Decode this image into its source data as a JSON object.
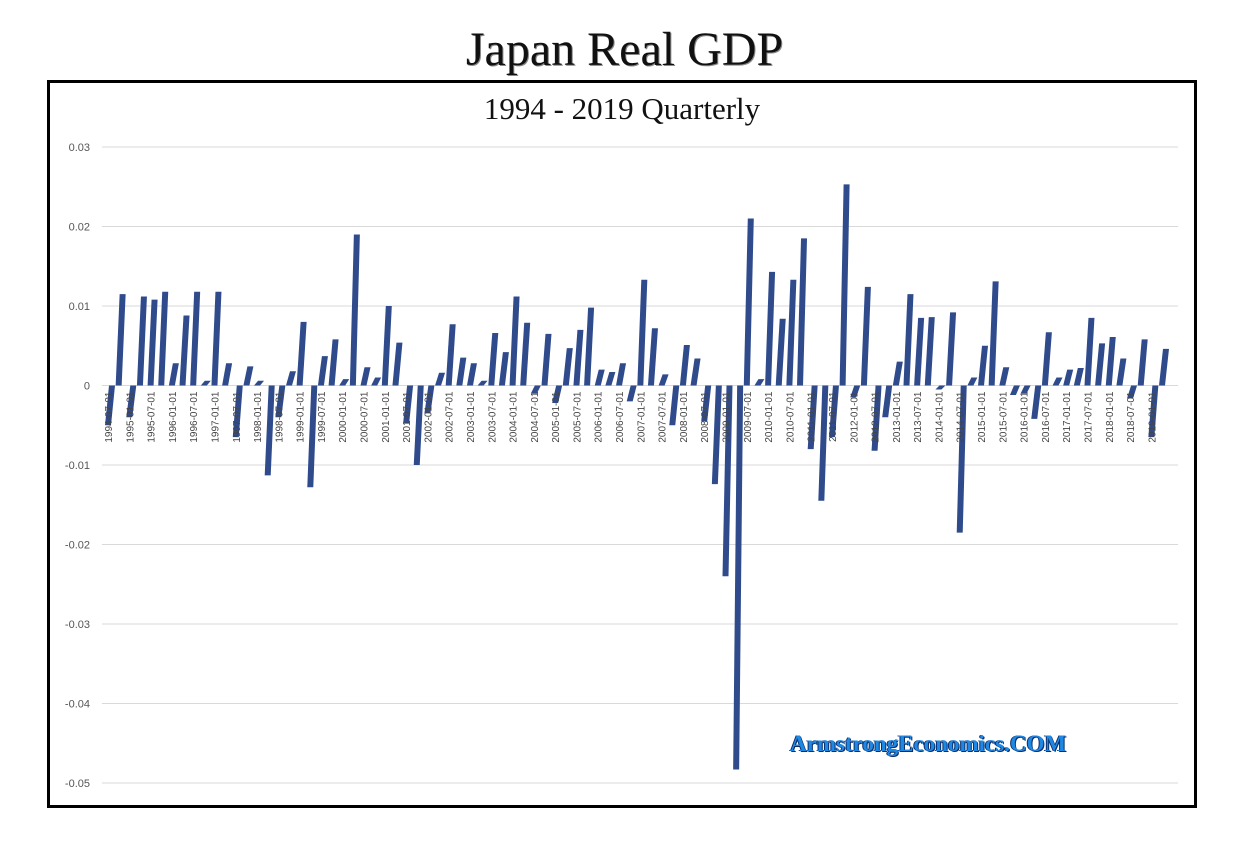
{
  "header": {
    "title": "Japan Real GDP"
  },
  "watermark": "ArmstrongEconomics.COM",
  "chart_data": {
    "type": "bar",
    "title": "1994 - 2019 Quarterly",
    "xlabel": "",
    "ylabel": "",
    "ylim": [
      -0.05,
      0.03
    ],
    "yticks": [
      0.03,
      0.02,
      0.01,
      0,
      -0.01,
      -0.02,
      -0.03,
      -0.04,
      -0.05
    ],
    "grid": true,
    "bar_color": "#2f4b8c",
    "categories": [
      "1994-07-01",
      "1994-10-01",
      "1995-01-01",
      "1995-04-01",
      "1995-07-01",
      "1995-10-01",
      "1996-01-01",
      "1996-04-01",
      "1996-07-01",
      "1996-10-01",
      "1997-01-01",
      "1997-04-01",
      "1997-07-01",
      "1997-10-01",
      "1998-01-01",
      "1998-04-01",
      "1998-07-01",
      "1998-10-01",
      "1999-01-01",
      "1999-04-01",
      "1999-07-01",
      "1999-10-01",
      "2000-01-01",
      "2000-04-01",
      "2000-07-01",
      "2000-10-01",
      "2001-01-01",
      "2001-04-01",
      "2001-07-01",
      "2001-10-01",
      "2002-01-01",
      "2002-04-01",
      "2002-07-01",
      "2002-10-01",
      "2003-01-01",
      "2003-04-01",
      "2003-07-01",
      "2003-10-01",
      "2004-01-01",
      "2004-04-01",
      "2004-07-01",
      "2004-10-01",
      "2005-01-01",
      "2005-04-01",
      "2005-07-01",
      "2005-10-01",
      "2006-01-01",
      "2006-04-01",
      "2006-07-01",
      "2006-10-01",
      "2007-01-01",
      "2007-04-01",
      "2007-07-01",
      "2007-10-01",
      "2008-01-01",
      "2008-04-01",
      "2008-07-01",
      "2008-10-01",
      "2009-01-01",
      "2009-04-01",
      "2009-07-01",
      "2009-10-01",
      "2010-01-01",
      "2010-04-01",
      "2010-07-01",
      "2010-10-01",
      "2011-01-01",
      "2011-04-01",
      "2011-07-01",
      "2011-10-01",
      "2012-01-01",
      "2012-04-01",
      "2012-07-01",
      "2012-10-01",
      "2013-01-01",
      "2013-04-01",
      "2013-07-01",
      "2013-10-01",
      "2014-01-01",
      "2014-04-01",
      "2014-07-01",
      "2014-10-01",
      "2015-01-01",
      "2015-04-01",
      "2015-07-01",
      "2015-10-01",
      "2016-01-01",
      "2016-04-01",
      "2016-07-01",
      "2016-10-01",
      "2017-01-01",
      "2017-04-01",
      "2017-07-01",
      "2017-10-01",
      "2018-01-01",
      "2018-04-01",
      "2018-07-01",
      "2018-10-01",
      "2019-01-01",
      "2019-04-01"
    ],
    "values": [
      -0.005,
      0.0115,
      -0.004,
      0.0112,
      0.0108,
      0.0118,
      0.0028,
      0.0088,
      0.0118,
      0.0006,
      0.0118,
      0.0028,
      -0.0065,
      0.0024,
      0.0006,
      -0.0113,
      -0.004,
      0.0018,
      0.008,
      -0.0128,
      0.0037,
      0.0058,
      0.0008,
      0.019,
      0.0023,
      0.001,
      0.01,
      0.0054,
      -0.0048,
      -0.01,
      -0.0035,
      0.0016,
      0.0077,
      0.0035,
      0.0028,
      0.0006,
      0.0066,
      0.0042,
      0.0112,
      0.0079,
      -0.001,
      0.0065,
      -0.0022,
      0.0047,
      0.007,
      0.0098,
      0.002,
      0.0017,
      0.0028,
      -0.002,
      0.0133,
      0.0072,
      0.0014,
      -0.005,
      0.0051,
      0.0034,
      -0.0045,
      -0.0124,
      -0.024,
      -0.0483,
      0.021,
      0.0008,
      0.0143,
      0.0084,
      0.0133,
      0.0185,
      -0.008,
      -0.0145,
      -0.0065,
      0.0253,
      -0.0015,
      0.0124,
      -0.0082,
      -0.004,
      0.003,
      0.0115,
      0.0085,
      0.0086,
      -0.0005,
      0.0092,
      -0.0185,
      0.001,
      0.005,
      0.0131,
      0.0023,
      -0.0012,
      -0.001,
      -0.0042,
      0.0067,
      0.001,
      0.002,
      0.0022,
      0.0085,
      0.0053,
      0.0061,
      0.0034,
      -0.0016,
      0.0058,
      -0.0065,
      0.0046
    ],
    "visible_tick_labels": [
      "1994-07-01",
      "1995-01-01",
      "1995-07-01",
      "1996-01-01",
      "1996-07-01",
      "1997-01-01",
      "1997-07-01",
      "1998-01-01",
      "1998-07-01",
      "1999-01-01",
      "1999-07-01",
      "2000-01-01",
      "2000-07-01",
      "2001-01-01",
      "2001-07-01",
      "2002-01-01",
      "2002-07-01",
      "2003-01-01",
      "2003-07-01",
      "2004-01-01",
      "2004-07-01",
      "2005-01-01",
      "2005-07-01",
      "2006-01-01",
      "2006-07-01",
      "2007-01-01",
      "2007-07-01",
      "2008-01-01",
      "2008-07-01",
      "2009-01-01",
      "2009-07-01",
      "2010-01-01",
      "2010-07-01",
      "2011-01-01",
      "2011-07-01",
      "2012-01-01",
      "2012-07-01",
      "2013-01-01",
      "2013-07-01",
      "2014-01-01",
      "2014-07-01",
      "2015-01-01",
      "2015-07-01",
      "2016-01-01",
      "2016-07-01",
      "2017-01-01",
      "2017-07-01",
      "2018-01-01",
      "2018-07-01",
      "2019-01-01"
    ]
  }
}
